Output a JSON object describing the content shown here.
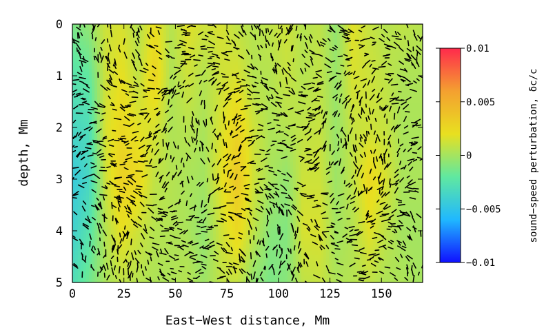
{
  "chart_data": {
    "type": "heatmap",
    "title": "",
    "xlabel": "East−West distance, Mm",
    "ylabel": "depth, Mm",
    "xlim": [
      0,
      170
    ],
    "ylim": [
      5,
      0
    ],
    "x_ticks": [
      0,
      25,
      50,
      75,
      100,
      125,
      150
    ],
    "x_tick_labels": [
      "0",
      "25",
      "50",
      "75",
      "100",
      "125",
      "150"
    ],
    "y_ticks": [
      0,
      1,
      2,
      3,
      4,
      5
    ],
    "y_tick_labels": [
      "0",
      "1",
      "2",
      "3",
      "4",
      "5"
    ],
    "colorbar": {
      "label": "sound−speed perturbation, δc/c",
      "range": [
        -0.01,
        0.01
      ],
      "ticks": [
        0.01,
        0.005,
        0,
        -0.005,
        -0.01
      ],
      "tick_labels": [
        "0.01",
        "0.005",
        "0",
        "−0.005",
        "−0.01"
      ],
      "colormap": [
        "#1010ff",
        "#20b8ff",
        "#60e8a0",
        "#e8e020",
        "#f4a030",
        "#ff2a4c"
      ]
    },
    "field_columns": [
      {
        "x": 0,
        "values": [
          -0.0012,
          -0.0025,
          -0.0035,
          -0.0045,
          -0.004,
          -0.003
        ]
      },
      {
        "x": 8,
        "values": [
          -0.0005,
          -0.002,
          -0.003,
          -0.0035,
          -0.0025,
          -0.0015
        ]
      },
      {
        "x": 16,
        "values": [
          0.0012,
          0.0012,
          0.0015,
          0.0012,
          0.0005,
          0.0002
        ]
      },
      {
        "x": 24,
        "values": [
          0.0015,
          0.002,
          0.0025,
          0.003,
          0.002,
          0.0008
        ]
      },
      {
        "x": 32,
        "values": [
          0.0005,
          0.0008,
          0.0018,
          0.0025,
          0.0012,
          0.0005
        ]
      },
      {
        "x": 40,
        "values": [
          0.0022,
          0.0028,
          0.0015,
          0.0008,
          0.0005,
          0.0003
        ]
      },
      {
        "x": 48,
        "values": [
          0.0005,
          0.0003,
          0.0003,
          0.0005,
          0.0004,
          0.0003
        ]
      },
      {
        "x": 56,
        "values": [
          0.0018,
          0.0012,
          0.0006,
          0.0002,
          0.0002,
          0.0005
        ]
      },
      {
        "x": 64,
        "values": [
          0.0012,
          0.0005,
          0.0002,
          0.0,
          -0.0005,
          -0.0002
        ]
      },
      {
        "x": 72,
        "values": [
          0.0015,
          0.0012,
          0.0015,
          0.0018,
          0.0012,
          0.0008
        ]
      },
      {
        "x": 80,
        "values": [
          0.0008,
          0.0015,
          0.0028,
          0.0035,
          0.0025,
          0.001
        ]
      },
      {
        "x": 88,
        "values": [
          0.0005,
          0.0005,
          0.0012,
          0.0012,
          0.0008,
          -0.0005
        ]
      },
      {
        "x": 96,
        "values": [
          0.0008,
          0.0005,
          0.0003,
          0.0002,
          -0.0008,
          -0.0012
        ]
      },
      {
        "x": 104,
        "values": [
          0.0012,
          0.001,
          0.0005,
          -0.0005,
          -0.001,
          -0.0008
        ]
      },
      {
        "x": 112,
        "values": [
          0.0005,
          0.0005,
          0.0008,
          0.0012,
          0.0015,
          0.0008
        ]
      },
      {
        "x": 120,
        "values": [
          0.0008,
          0.0008,
          0.001,
          0.0012,
          0.0015,
          0.001
        ]
      },
      {
        "x": 128,
        "values": [
          -0.0005,
          -0.0003,
          -0.0003,
          -0.0002,
          0.0,
          0.0003
        ]
      },
      {
        "x": 136,
        "values": [
          0.0018,
          0.0015,
          0.001,
          0.0008,
          0.0005,
          0.0005
        ]
      },
      {
        "x": 144,
        "values": [
          0.001,
          0.0012,
          0.0012,
          0.0025,
          0.0018,
          0.0008
        ]
      },
      {
        "x": 152,
        "values": [
          0.0005,
          0.0008,
          0.001,
          0.0015,
          0.0008,
          0.0003
        ]
      },
      {
        "x": 160,
        "values": [
          0.0008,
          0.0003,
          0.0002,
          0.0002,
          0.0,
          0.0003
        ]
      },
      {
        "x": 170,
        "values": [
          0.0005,
          0.0003,
          0.0002,
          0.0002,
          0.0,
          0.0
        ]
      }
    ],
    "arrow_overlay": {
      "color": "#000000",
      "description_count": 1800
    }
  }
}
